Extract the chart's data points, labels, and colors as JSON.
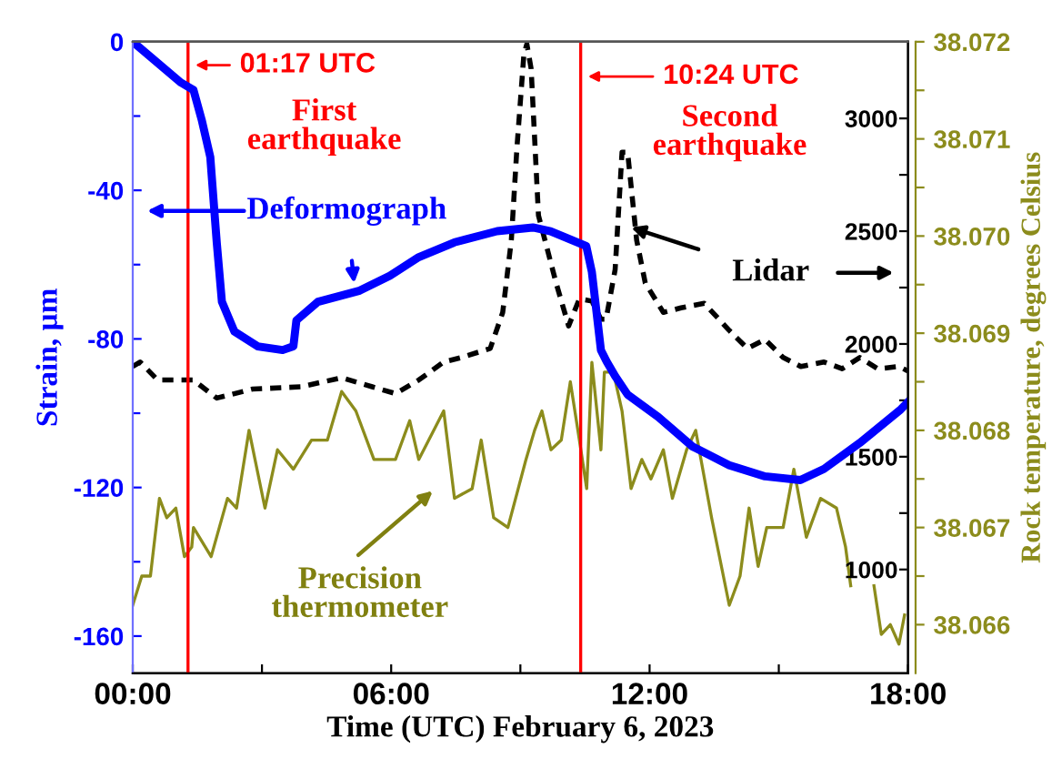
{
  "chart_data": {
    "type": "line",
    "xlabel": "Time (UTC) February 6, 2023",
    "ylabel": "Strain, µm",
    "y2label": "Rock temperature, degrees Celsius",
    "xlim": [
      0,
      18
    ],
    "xticks": [
      {
        "value": 0,
        "label": "00:00"
      },
      {
        "value": 3,
        "label": null
      },
      {
        "value": 6,
        "label": "06:00"
      },
      {
        "value": 9,
        "label": null
      },
      {
        "value": 12,
        "label": "12:00"
      },
      {
        "value": 15,
        "label": null
      },
      {
        "value": 18,
        "label": "18:00"
      }
    ],
    "ylim": [
      -170,
      0
    ],
    "yticks": [
      -160,
      {
        "value": -140,
        "label": null
      },
      -120,
      {
        "value": -100,
        "label": null
      },
      -80,
      {
        "value": -60,
        "label": null
      },
      -40,
      {
        "value": -20,
        "label": null
      },
      0
    ],
    "y2lim": [
      38.0655,
      38.072
    ],
    "y2ticks": [
      38.066,
      {
        "value": 38.0665,
        "label": null
      },
      38.067,
      {
        "value": 38.0675,
        "label": null
      },
      38.068,
      {
        "value": 38.0685,
        "label": null
      },
      38.069,
      {
        "value": 38.0695,
        "label": null
      },
      {
        "value": 38.07,
        "label": "38.070"
      },
      {
        "value": 38.0705,
        "label": null
      },
      38.071,
      {
        "value": 38.0715,
        "label": null
      },
      38.072
    ],
    "y3lim": [
      540,
      3340
    ],
    "y3ticks": [
      1000,
      {
        "value": 1250,
        "label": null
      },
      1500,
      {
        "value": 1750,
        "label": null
      },
      2000,
      {
        "value": 2250,
        "label": null
      },
      2500,
      {
        "value": 2750,
        "label": null
      },
      3000
    ],
    "grid": false,
    "legend": false,
    "series": [
      {
        "color": "#0000ff",
        "line_style": "solid",
        "x": [
          0,
          1.12,
          1.41,
          1.6,
          1.8,
          1.95,
          2.07,
          2.36,
          2.9,
          3.48,
          3.73,
          3.8,
          4.3,
          5.27,
          5.97,
          6.64,
          7.47,
          8.46,
          9.29,
          9.7,
          10.53,
          10.66,
          10.74,
          10.87,
          11.0,
          11.2,
          11.49,
          12.2,
          13.0,
          13.85,
          14.68,
          15.5,
          16.05,
          16.88,
          17.83,
          18
        ],
        "values": [
          0,
          -11,
          -13,
          -21,
          -31,
          -54,
          -70,
          -78,
          -82,
          -83,
          -82,
          -75,
          -70,
          -67,
          -63,
          -58,
          -54,
          -51,
          -50,
          -51,
          -55,
          -62,
          -70,
          -83,
          -86,
          -90,
          -95,
          -101,
          -109,
          -114,
          -117,
          -118,
          -115,
          -108,
          -99,
          -97
        ]
      },
      {
        "color": "#000000",
        "line_style": "dashed",
        "axis": "y3",
        "x": [
          0,
          0.17,
          0.58,
          1.41,
          1.95,
          2.78,
          3.9,
          4.85,
          5.56,
          6.1,
          6.64,
          7.22,
          7.63,
          8.3,
          8.59,
          8.79,
          8.92,
          9.08,
          9.15,
          9.25,
          9.42,
          9.83,
          10.12,
          10.37,
          10.66,
          10.87,
          10.99,
          11.2,
          11.36,
          11.49,
          11.7,
          11.9,
          12.32,
          12.73,
          13.27,
          13.85,
          14.27,
          14.68,
          15.1,
          15.51,
          16.05,
          16.47,
          16.88,
          17.3,
          17.79,
          18
        ],
        "values": [
          1900,
          1920,
          1840,
          1840,
          1760,
          1800,
          1810,
          1850,
          1810,
          1780,
          1840,
          1920,
          1940,
          1980,
          2140,
          2460,
          2870,
          3280,
          3330,
          3220,
          2570,
          2270,
          2080,
          2200,
          2190,
          2110,
          2110,
          2330,
          2850,
          2850,
          2460,
          2270,
          2140,
          2160,
          2180,
          2060,
          1980,
          2020,
          1940,
          1900,
          1920,
          1890,
          1940,
          1890,
          1900,
          1880
        ]
      },
      {
        "color": "#8c8c1c",
        "line_style": "solid",
        "axis": "y2",
        "x": [
          0,
          0.21,
          0.41,
          0.62,
          0.79,
          1.0,
          1.2,
          1.37,
          1.41,
          1.82,
          2.2,
          2.41,
          2.7,
          3.07,
          3.36,
          3.73,
          4.15,
          4.52,
          4.85,
          5.18,
          5.6,
          6.1,
          6.43,
          6.64,
          7.22,
          7.47,
          7.88,
          8.09,
          8.38,
          8.71,
          9.13,
          9.33,
          9.5,
          9.71,
          9.95,
          10.16,
          10.37,
          10.54,
          10.66,
          10.87,
          10.95,
          11.16,
          11.36,
          11.57,
          11.82,
          12.03,
          12.32,
          12.53,
          12.86,
          13.07,
          13.44,
          13.85,
          14.1,
          14.31,
          14.52,
          14.72,
          15.1,
          15.35,
          15.64,
          15.97,
          16.34,
          16.55,
          16.67,
          17.0,
          17.21,
          17.38,
          17.59,
          17.79,
          17.92
        ],
        "values": [
          38.0662,
          38.0665,
          38.0665,
          38.0673,
          38.0671,
          38.0672,
          38.0667,
          38.0668,
          38.067,
          38.0667,
          38.0673,
          38.0672,
          38.068,
          38.0672,
          38.0678,
          38.0676,
          38.0679,
          38.0679,
          38.0684,
          38.0682,
          38.0677,
          38.0677,
          38.0681,
          38.0677,
          38.0682,
          38.0673,
          38.0674,
          38.0679,
          38.0671,
          38.067,
          38.0677,
          38.068,
          38.0682,
          38.0678,
          38.0679,
          38.0685,
          38.0679,
          38.0674,
          38.0687,
          38.0678,
          38.0686,
          38.0686,
          38.0682,
          38.0674,
          38.0677,
          38.0675,
          38.0678,
          38.0673,
          38.0678,
          38.068,
          38.0671,
          38.0662,
          38.0665,
          38.0672,
          38.0666,
          38.067,
          38.067,
          38.0676,
          38.0669,
          38.0673,
          38.0672,
          38.0668,
          38.0664,
          null,
          38.0664,
          38.0659,
          38.066,
          38.0658,
          38.0661
        ]
      }
    ],
    "ref_lines": [
      {
        "axis": "x",
        "value": 1.283,
        "label": "01:17 UTC",
        "color": "#ff0000"
      },
      {
        "axis": "x",
        "value": 10.4,
        "label": "10:24 UTC",
        "color": "#ff0000"
      }
    ],
    "annotations": [
      "First\nearthquake",
      "Second\nearthquake",
      {
        "text": "Deformograph",
        "x": 5.14,
        "y": -65
      },
      {
        "text": "Lidar",
        "x": 11.57,
        "y": -50
      },
      "Precision\nthermometer"
    ]
  }
}
